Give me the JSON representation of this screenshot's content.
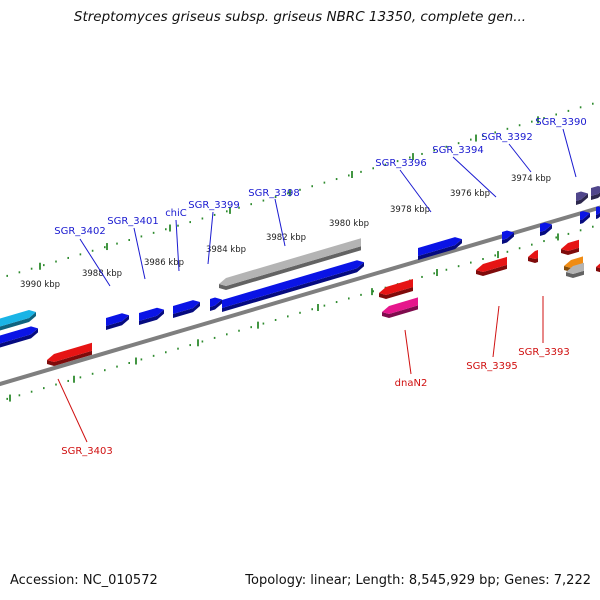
{
  "title": "Streptomyces griseus subsp. griseus NBRC 13350, complete gen...",
  "footer": {
    "accession_text": "Accession: NC_010572",
    "summary_text": "Topology: linear; Length: 8,545,929 bp; Genes: 7,222"
  },
  "colors": {
    "backbone": "#7f7f7f",
    "ruler": "#2e8b2e",
    "forward_label": "#1a1ad0",
    "reverse_label": "#d01010",
    "gene_blue": "#0a14e6",
    "gene_red": "#e61414",
    "gene_magenta": "#e6168c",
    "gene_cyan": "#1ab4e6",
    "gene_gray": "#b4b4b4",
    "gene_purple": "#50468c",
    "gene_orange": "#f08c14"
  },
  "ruler_ticks": [
    "3974 kbp",
    "3976 kbp",
    "3978 kbp",
    "3980 kbp",
    "3982 kbp",
    "3984 kbp",
    "3986 kbp",
    "3988 kbp",
    "3990 kbp"
  ],
  "forward_gene_labels": [
    "SGR_3390",
    "SGR_3392",
    "SGR_3394",
    "SGR_3396",
    "SGR_3398",
    "SGR_3399",
    "chiC",
    "SGR_3401",
    "SGR_3402"
  ],
  "reverse_gene_labels": [
    "SGR_3393",
    "SGR_3395",
    "dnaN2",
    "SGR_3403"
  ]
}
